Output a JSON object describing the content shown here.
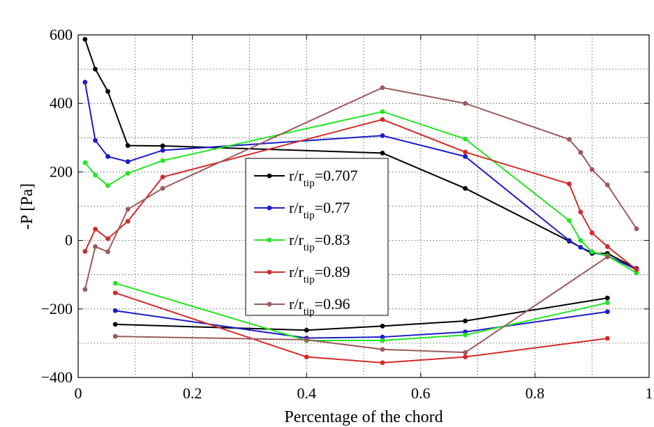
{
  "chart_data": {
    "type": "line",
    "title": "",
    "xlabel": "Percentage of the chord",
    "ylabel": "-P [Pa]",
    "xlim": [
      0,
      1
    ],
    "ylim": [
      -400,
      600
    ],
    "xticks": [
      0,
      0.2,
      0.4,
      0.6,
      0.8,
      1
    ],
    "xtick_labels": [
      "0",
      "0.2",
      "0.4",
      "0.6",
      "0.8",
      "1"
    ],
    "yticks": [
      -400,
      -200,
      0,
      200,
      400,
      600
    ],
    "ytick_labels": [
      "−400",
      "−200",
      "0",
      "200",
      "400",
      "600"
    ],
    "grid": true,
    "legend_position": "center",
    "series": [
      {
        "name": "r/r_tip=0.707",
        "legend_main": "r/r",
        "legend_sub": "tip",
        "legend_value": "=0.707",
        "color": "#000000",
        "upper": [
          [
            0.012,
            587
          ],
          [
            0.03,
            500
          ],
          [
            0.052,
            435
          ],
          [
            0.087,
            277
          ],
          [
            0.148,
            276
          ],
          [
            0.533,
            255
          ],
          [
            0.678,
            152
          ],
          [
            0.86,
            -2
          ],
          [
            0.9,
            -38
          ],
          [
            0.927,
            -38
          ],
          [
            0.978,
            -82
          ]
        ],
        "lower": [
          [
            0.065,
            -245
          ],
          [
            0.4,
            -262
          ],
          [
            0.533,
            -250
          ],
          [
            0.678,
            -235
          ],
          [
            0.927,
            -168
          ]
        ]
      },
      {
        "name": "r/r_tip=0.77",
        "legend_main": "r/r",
        "legend_sub": "tip",
        "legend_value": "=0.77",
        "color": "#1c1cc8",
        "upper": [
          [
            0.012,
            462
          ],
          [
            0.03,
            292
          ],
          [
            0.052,
            245
          ],
          [
            0.087,
            230
          ],
          [
            0.148,
            263
          ],
          [
            0.533,
            306
          ],
          [
            0.678,
            245
          ],
          [
            0.86,
            0
          ],
          [
            0.88,
            -20
          ],
          [
            0.9,
            -35
          ],
          [
            0.927,
            -45
          ],
          [
            0.978,
            -85
          ]
        ],
        "lower": [
          [
            0.065,
            -205
          ],
          [
            0.4,
            -285
          ],
          [
            0.533,
            -282
          ],
          [
            0.678,
            -267
          ],
          [
            0.927,
            -208
          ]
        ]
      },
      {
        "name": "r/r_tip=0.83",
        "legend_main": "r/r",
        "legend_sub": "tip",
        "legend_value": "=0.83",
        "color": "#22e622",
        "upper": [
          [
            0.012,
            227
          ],
          [
            0.03,
            191
          ],
          [
            0.052,
            160
          ],
          [
            0.087,
            196
          ],
          [
            0.148,
            233
          ],
          [
            0.533,
            376
          ],
          [
            0.678,
            296
          ],
          [
            0.86,
            58
          ],
          [
            0.88,
            0
          ],
          [
            0.9,
            -33
          ],
          [
            0.927,
            -45
          ],
          [
            0.978,
            -95
          ]
        ],
        "lower": [
          [
            0.065,
            -125
          ],
          [
            0.4,
            -292
          ],
          [
            0.533,
            -292
          ],
          [
            0.678,
            -276
          ],
          [
            0.927,
            -182
          ]
        ]
      },
      {
        "name": "r/r_tip=0.89",
        "legend_main": "r/r",
        "legend_sub": "tip",
        "legend_value": "=0.89",
        "color": "#d42a2a",
        "upper": [
          [
            0.012,
            -32
          ],
          [
            0.03,
            33
          ],
          [
            0.052,
            5
          ],
          [
            0.087,
            56
          ],
          [
            0.148,
            185
          ],
          [
            0.533,
            353
          ],
          [
            0.678,
            258
          ],
          [
            0.86,
            165
          ],
          [
            0.88,
            83
          ],
          [
            0.9,
            22
          ],
          [
            0.927,
            -18
          ],
          [
            0.978,
            -85
          ]
        ],
        "lower": [
          [
            0.065,
            -153
          ],
          [
            0.4,
            -340
          ],
          [
            0.533,
            -357
          ],
          [
            0.678,
            -340
          ],
          [
            0.927,
            -286
          ]
        ]
      },
      {
        "name": "r/r_tip=0.96",
        "legend_main": "r/r",
        "legend_sub": "tip",
        "legend_value": "=0.96",
        "color": "#9b5a5a",
        "upper": [
          [
            0.012,
            -143
          ],
          [
            0.03,
            -18
          ],
          [
            0.052,
            -33
          ],
          [
            0.087,
            91
          ],
          [
            0.148,
            152
          ],
          [
            0.533,
            446
          ],
          [
            0.678,
            400
          ],
          [
            0.86,
            295
          ],
          [
            0.88,
            257
          ],
          [
            0.9,
            207
          ],
          [
            0.927,
            162
          ],
          [
            0.978,
            34
          ]
        ],
        "lower": [
          [
            0.065,
            -280
          ],
          [
            0.4,
            -290
          ],
          [
            0.533,
            -318
          ],
          [
            0.678,
            -327
          ],
          [
            0.927,
            -48
          ]
        ]
      }
    ]
  }
}
